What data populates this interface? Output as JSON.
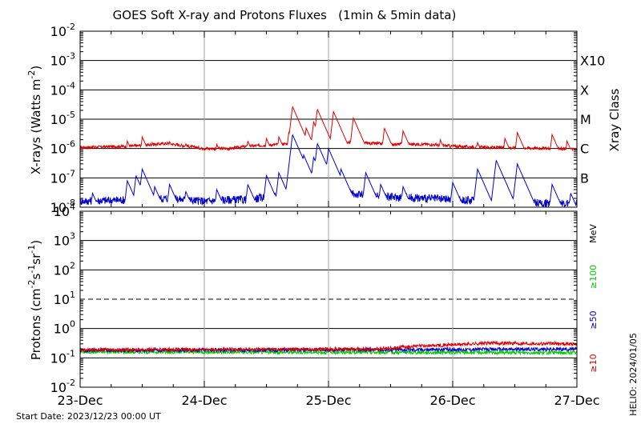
{
  "title": "GOES Soft X-ray and Protons Fluxes   (1min & 5min data)",
  "start_date": "Start Date: 2023/12/23 00:00 UT",
  "helio_date": "HELIO: 2024/01/05",
  "colors": {
    "xray_long": "#e00000",
    "xray_short": "#0000cc",
    "p10": "#e00000",
    "p50": "#0000cc",
    "p100": "#00cc00",
    "grid": "#000000",
    "day_line": "#a0a0a0"
  },
  "chart_data": [
    {
      "type": "line",
      "ylabel": "X-rays (Watts m-2)",
      "ylabel_parts": {
        "main": "X-rays (Watts m",
        "exp": "-2",
        "close": ")"
      },
      "yscale": "log",
      "ylim": [
        1e-08,
        0.01
      ],
      "ytick_exponents": [
        -8,
        -7,
        -6,
        -5,
        -4,
        -3,
        -2
      ],
      "right_axis_label": "Xray Class",
      "class_labels": [
        {
          "label": "B",
          "value": 1e-07
        },
        {
          "label": "C",
          "value": 1e-06
        },
        {
          "label": "M",
          "value": 1e-05
        },
        {
          "label": "X",
          "value": 0.0001
        },
        {
          "label": "X10",
          "value": 0.001
        }
      ],
      "xlim_days": [
        0,
        4
      ],
      "x_tick_labels": [
        "23-Dec",
        "24-Dec",
        "25-Dec",
        "26-Dec",
        "27-Dec"
      ],
      "series": [
        {
          "color": "#e00000",
          "baseline": [
            [
              0,
              1.1e-06
            ],
            [
              0.4,
              1.2e-06
            ],
            [
              0.7,
              1.5e-06
            ],
            [
              1.0,
              1e-06
            ],
            [
              1.2,
              1e-06
            ],
            [
              1.35,
              1.2e-06
            ],
            [
              1.5,
              1.3e-06
            ],
            [
              1.7,
              1.5e-06
            ],
            [
              1.85,
              2e-06
            ],
            [
              2.0,
              1.8e-06
            ],
            [
              2.2,
              1.6e-06
            ],
            [
              2.5,
              1.4e-06
            ],
            [
              2.8,
              1.4e-06
            ],
            [
              3.0,
              1.2e-06
            ],
            [
              3.3,
              1.1e-06
            ],
            [
              3.6,
              1.05e-06
            ],
            [
              4.0,
              9.5e-07
            ]
          ],
          "peaks": [
            [
              0.38,
              1.8e-06
            ],
            [
              0.5,
              2.5e-06
            ],
            [
              0.58,
              1.6e-06
            ],
            [
              0.72,
              1.7e-06
            ],
            [
              0.85,
              1.5e-06
            ],
            [
              1.1,
              1.4e-06
            ],
            [
              1.35,
              1.8e-06
            ],
            [
              1.5,
              2.2e-06
            ],
            [
              1.6,
              2.5e-06
            ],
            [
              1.68,
              3.5e-06
            ],
            [
              1.71,
              2.7e-05
            ],
            [
              1.82,
              5e-06
            ],
            [
              1.88,
              8e-06
            ],
            [
              1.91,
              2.2e-05
            ],
            [
              2.04,
              1.8e-05
            ],
            [
              2.2,
              1.1e-05
            ],
            [
              2.45,
              5e-06
            ],
            [
              2.6,
              4e-06
            ],
            [
              2.9,
              2e-06
            ],
            [
              3.2,
              1.6e-06
            ],
            [
              3.42,
              2.2e-06
            ],
            [
              3.52,
              3.5e-06
            ],
            [
              3.8,
              3e-06
            ],
            [
              3.92,
              1.8e-06
            ]
          ]
        },
        {
          "color": "#0000cc",
          "baseline": [
            [
              0,
              1.6e-08
            ],
            [
              0.4,
              1.8e-08
            ],
            [
              0.7,
              2e-08
            ],
            [
              1.0,
              1.6e-08
            ],
            [
              1.2,
              1.8e-08
            ],
            [
              1.35,
              1.8e-08
            ],
            [
              1.5,
              2.2e-08
            ],
            [
              1.7,
              2.5e-08
            ],
            [
              1.85,
              4e-08
            ],
            [
              2.0,
              3.5e-08
            ],
            [
              2.2,
              2.8e-08
            ],
            [
              2.5,
              2.2e-08
            ],
            [
              2.8,
              2e-08
            ],
            [
              3.0,
              1.8e-08
            ],
            [
              3.3,
              1.6e-08
            ],
            [
              3.6,
              1.4e-08
            ],
            [
              4.0,
              1.3e-08
            ]
          ],
          "peaks": [
            [
              0.1,
              3e-08
            ],
            [
              0.38,
              8e-08
            ],
            [
              0.45,
              1.2e-07
            ],
            [
              0.5,
              2e-07
            ],
            [
              0.6,
              5e-08
            ],
            [
              0.72,
              6e-08
            ],
            [
              0.85,
              3.5e-08
            ],
            [
              1.1,
              4e-08
            ],
            [
              1.35,
              6e-08
            ],
            [
              1.5,
              1.2e-07
            ],
            [
              1.6,
              1.5e-07
            ],
            [
              1.68,
              1.2e-07
            ],
            [
              1.71,
              3e-06
            ],
            [
              1.8,
              6e-07
            ],
            [
              1.88,
              5e-07
            ],
            [
              1.91,
              1.5e-06
            ],
            [
              2.0,
              1e-06
            ],
            [
              2.1,
              2e-07
            ],
            [
              2.3,
              1.5e-07
            ],
            [
              2.42,
              6e-08
            ],
            [
              2.6,
              5e-08
            ],
            [
              3.0,
              7e-08
            ],
            [
              3.2,
              2e-07
            ],
            [
              3.35,
              4e-07
            ],
            [
              3.52,
              3e-07
            ],
            [
              3.8,
              6e-08
            ],
            [
              3.95,
              3e-08
            ]
          ]
        }
      ]
    },
    {
      "type": "line",
      "ylabel": "Protons (cm-2s-1sr-1)",
      "ylabel_parts": {
        "main": "Protons (cm",
        "e1": "-2",
        "s": "s",
        "e2": "-1",
        "sr": "sr",
        "e3": "-1",
        "close": ")"
      },
      "yscale": "log",
      "ylim": [
        0.01,
        10000
      ],
      "ytick_exponents": [
        -2,
        -1,
        0,
        1,
        2,
        3,
        4
      ],
      "threshold_dashed": 10,
      "unit_label": "MeV",
      "xlim_days": [
        0,
        4
      ],
      "x_tick_labels": [
        "23-Dec",
        "24-Dec",
        "25-Dec",
        "26-Dec",
        "27-Dec"
      ],
      "series": [
        {
          "name": "≥100",
          "color": "#00cc00",
          "level": [
            [
              0,
              0.16
            ],
            [
              4,
              0.15
            ]
          ]
        },
        {
          "name": "≥50",
          "color": "#0000cc",
          "level": [
            [
              0,
              0.18
            ],
            [
              2.5,
              0.19
            ],
            [
              4,
              0.2
            ]
          ]
        },
        {
          "name": "≥10",
          "color": "#e00000",
          "level": [
            [
              0,
              0.19
            ],
            [
              2.4,
              0.2
            ],
            [
              2.7,
              0.25
            ],
            [
              3.0,
              0.28
            ],
            [
              3.3,
              0.32
            ],
            [
              4,
              0.3
            ]
          ]
        }
      ]
    }
  ]
}
